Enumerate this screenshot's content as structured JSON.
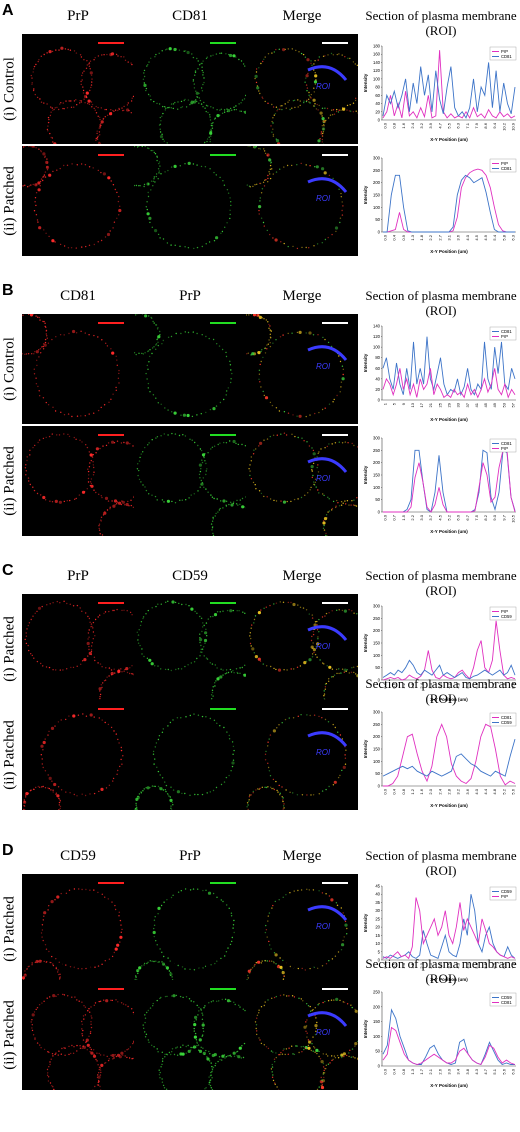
{
  "figure": {
    "section_title_line1": "Section of plasma membrane",
    "section_title_line2": "(ROI)",
    "roi_label": "ROI",
    "merge_label": "Merge",
    "y_axis_label": "Intensity",
    "x_axis_label": "X-Y Position (um)",
    "panels": [
      {
        "letter": "A",
        "channels": [
          "PrP",
          "CD81"
        ],
        "rows": [
          {
            "label": "(i) Control",
            "legend": [
              "PrP",
              "CD81"
            ],
            "ymax": 180,
            "yticks": [
              0,
              20,
              40,
              60,
              80,
              100,
              120,
              140,
              160,
              180
            ],
            "xticks": [
              "0.0",
              "0.8",
              "1.6",
              "2.4",
              "3.2",
              "3.9",
              "4.7",
              "5.5",
              "6.3",
              "7.1",
              "7.9",
              "8.6",
              "9.4",
              "10.2",
              "10.9"
            ]
          },
          {
            "label": "(ii) Patched",
            "legend": [
              "PrP",
              "CD81"
            ],
            "ymax": 300,
            "yticks": [
              0,
              50,
              100,
              150,
              200,
              250,
              300
            ],
            "xticks": [
              "0.0",
              "0.4",
              "0.9",
              "1.3",
              "1.8",
              "2.2",
              "2.7",
              "3.1",
              "3.6",
              "4.0",
              "4.5",
              "4.9",
              "5.4",
              "5.8",
              "6.3"
            ]
          }
        ]
      },
      {
        "letter": "B",
        "channels": [
          "CD81",
          "PrP"
        ],
        "rows": [
          {
            "label": "(i) Control",
            "legend": [
              "CD81",
              "PrP"
            ],
            "ymax": 140,
            "yticks": [
              0,
              20,
              40,
              60,
              80,
              100,
              120,
              140
            ],
            "xticks": [
              "1",
              "5",
              "9",
              "13",
              "17",
              "21",
              "25",
              "29",
              "33",
              "37",
              "41",
              "45",
              "49",
              "53",
              "57"
            ]
          },
          {
            "label": "(ii) Patched",
            "legend": [
              "CD81",
              "PrP"
            ],
            "ymax": 300,
            "yticks": [
              0,
              50,
              100,
              150,
              200,
              250,
              300
            ],
            "xticks": [
              "0.0",
              "0.7",
              "1.5",
              "2.2",
              "3.0",
              "3.7",
              "4.5",
              "5.2",
              "6.0",
              "6.7",
              "7.5",
              "8.2",
              "9.0",
              "9.7",
              "10.5"
            ]
          }
        ]
      },
      {
        "letter": "C",
        "channels": [
          "PrP",
          "CD59"
        ],
        "rows": [
          {
            "label": "(i) Patched",
            "channels": [
              "PrP",
              "CD59"
            ],
            "legend": [
              "PrP",
              "CD59"
            ],
            "ymax": 300,
            "yticks": [
              0,
              50,
              100,
              150,
              200,
              250,
              300
            ],
            "xticks": [
              "0.0",
              "0.6",
              "1.2",
              "1.8",
              "2.4",
              "3.0",
              "3.6",
              "4.2",
              "4.8",
              "5.4",
              "6.0",
              "6.6",
              "7.2",
              "7.8",
              "8.4"
            ]
          },
          {
            "label": "(ii) Patched",
            "channels": [
              "CD81",
              "CD59"
            ],
            "legend": [
              "CD81",
              "CD59"
            ],
            "ymax": 300,
            "yticks": [
              0,
              50,
              100,
              150,
              200,
              250,
              300
            ],
            "xticks": [
              "0.0",
              "0.4",
              "0.8",
              "1.2",
              "1.6",
              "2.0",
              "2.4",
              "2.8",
              "3.2",
              "3.6",
              "4.0",
              "4.4",
              "4.8",
              "5.2",
              "5.6"
            ]
          }
        ]
      },
      {
        "letter": "D",
        "channels": [
          "CD59",
          "PrP"
        ],
        "rows": [
          {
            "label": "(i) Patched",
            "channels": [
              "CD59",
              "PrP"
            ],
            "legend": [
              "CD59",
              "PrP"
            ],
            "ymax": 45,
            "yticks": [
              0,
              5,
              10,
              15,
              20,
              25,
              30,
              35,
              40,
              45
            ],
            "xticks": [
              "0.0",
              "0.5",
              "1.0",
              "1.5",
              "2.0",
              "2.5",
              "3.0",
              "3.5",
              "4.0",
              "4.5",
              "5.0",
              "5.5",
              "6.0",
              "6.5",
              "7.0"
            ]
          },
          {
            "label": "(ii) Patched",
            "channels": [
              "CD59",
              "CD81"
            ],
            "legend": [
              "CD59",
              "CD81"
            ],
            "ymax": 250,
            "yticks": [
              0,
              50,
              100,
              150,
              200,
              250
            ],
            "xticks": [
              "0.0",
              "0.4",
              "0.8",
              "1.3",
              "1.7",
              "2.1",
              "2.6",
              "3.0",
              "3.4",
              "3.8",
              "4.3",
              "4.7",
              "5.1",
              "5.6",
              "6.0"
            ]
          }
        ]
      }
    ]
  },
  "colors": {
    "magenta": "#e030c0",
    "blue": "#3d74c8",
    "scale_red": "#ff2020",
    "scale_green": "#22dd22",
    "scale_white": "#ffffff",
    "roi": "#3b3bff"
  },
  "chart_data": [
    {
      "type": "line",
      "panel": "A(i)",
      "ylabel": "Intensity",
      "xlabel": "X-Y Position (um)",
      "ylim": [
        0,
        180
      ],
      "series": [
        {
          "name": "PrP",
          "values": [
            5,
            20,
            60,
            10,
            40,
            5,
            70,
            10,
            20,
            5,
            30,
            8,
            60,
            5,
            10,
            170,
            20,
            5,
            15,
            5,
            10,
            5,
            20,
            5,
            30,
            8,
            15,
            5,
            25,
            10,
            5,
            20,
            8,
            15,
            5,
            10
          ]
        },
        {
          "name": "CD81",
          "values": [
            10,
            60,
            40,
            70,
            30,
            60,
            100,
            20,
            90,
            40,
            130,
            60,
            110,
            20,
            120,
            50,
            15,
            80,
            130,
            30,
            10,
            20,
            5,
            30,
            100,
            20,
            80,
            60,
            140,
            30,
            120,
            20,
            90,
            40,
            15,
            80
          ]
        }
      ]
    },
    {
      "type": "line",
      "panel": "A(ii)",
      "ylabel": "Intensity",
      "xlabel": "X-Y Position (um)",
      "ylim": [
        0,
        300
      ],
      "series": [
        {
          "name": "PrP",
          "values": [
            0,
            0,
            5,
            10,
            80,
            10,
            0,
            0,
            0,
            0,
            0,
            0,
            0,
            0,
            0,
            0,
            0,
            5,
            60,
            180,
            220,
            240,
            250,
            255,
            250,
            230,
            180,
            100,
            30,
            5,
            0,
            0,
            0
          ]
        },
        {
          "name": "CD81",
          "values": [
            0,
            0,
            150,
            230,
            230,
            100,
            5,
            0,
            0,
            0,
            0,
            0,
            0,
            0,
            0,
            0,
            0,
            20,
            150,
            210,
            230,
            220,
            200,
            210,
            220,
            160,
            80,
            10,
            0,
            0,
            0,
            0,
            0
          ]
        }
      ]
    },
    {
      "type": "line",
      "panel": "B(i)",
      "ylabel": "Intensity",
      "xlabel": "X-Y Position (um)",
      "ylim": [
        0,
        140
      ],
      "series": [
        {
          "name": "CD81",
          "values": [
            60,
            80,
            40,
            20,
            70,
            30,
            10,
            60,
            20,
            110,
            30,
            60,
            30,
            120,
            40,
            20,
            50,
            80,
            30,
            10,
            20,
            15,
            40,
            10,
            25,
            60,
            20,
            10,
            30,
            20,
            110,
            40,
            20,
            100,
            50,
            110,
            30,
            20,
            60,
            40
          ]
        },
        {
          "name": "PrP",
          "values": [
            20,
            40,
            30,
            10,
            30,
            60,
            20,
            40,
            10,
            30,
            5,
            40,
            20,
            30,
            60,
            10,
            30,
            20,
            5,
            10,
            5,
            20,
            10,
            15,
            5,
            30,
            10,
            20,
            5,
            20,
            40,
            15,
            30,
            60,
            20,
            10,
            30,
            5,
            20,
            10
          ]
        }
      ]
    },
    {
      "type": "line",
      "panel": "B(ii)",
      "ylabel": "Intensity",
      "xlabel": "X-Y Position (um)",
      "ylim": [
        0,
        300
      ],
      "series": [
        {
          "name": "CD81",
          "values": [
            0,
            0,
            0,
            0,
            0,
            0,
            10,
            50,
            250,
            250,
            120,
            10,
            0,
            80,
            230,
            80,
            0,
            0,
            0,
            0,
            0,
            0,
            0,
            10,
            80,
            250,
            240,
            60,
            10,
            80,
            250,
            240,
            60,
            5
          ]
        },
        {
          "name": "PrP",
          "values": [
            0,
            0,
            0,
            0,
            0,
            0,
            0,
            20,
            140,
            200,
            120,
            20,
            0,
            30,
            100,
            30,
            0,
            0,
            0,
            0,
            0,
            0,
            0,
            5,
            100,
            200,
            150,
            40,
            60,
            180,
            250,
            250,
            60,
            0
          ]
        }
      ]
    },
    {
      "type": "line",
      "panel": "C(i)",
      "ylabel": "Intensity",
      "xlabel": "X-Y Position (um)",
      "ylim": [
        0,
        300
      ],
      "series": [
        {
          "name": "PrP",
          "values": [
            0,
            5,
            10,
            5,
            10,
            0,
            5,
            20,
            10,
            5,
            15,
            40,
            120,
            40,
            10,
            5,
            20,
            10,
            5,
            10,
            30,
            40,
            20,
            5,
            50,
            120,
            160,
            50,
            30,
            80,
            240,
            120,
            20,
            5,
            10,
            5
          ]
        },
        {
          "name": "CD59",
          "values": [
            10,
            20,
            30,
            20,
            40,
            30,
            50,
            80,
            60,
            30,
            20,
            40,
            30,
            20,
            40,
            60,
            20,
            30,
            20,
            10,
            20,
            30,
            10,
            5,
            15,
            20,
            30,
            40,
            30,
            20,
            30,
            40,
            20,
            30,
            60,
            20
          ]
        }
      ]
    },
    {
      "type": "line",
      "panel": "C(ii)",
      "ylabel": "Intensity",
      "xlabel": "X-Y Position (um)",
      "ylim": [
        0,
        300
      ],
      "series": [
        {
          "name": "CD81",
          "values": [
            0,
            0,
            10,
            40,
            120,
            200,
            210,
            130,
            60,
            20,
            80,
            200,
            250,
            200,
            90,
            40,
            20,
            10,
            30,
            100,
            200,
            250,
            240,
            150,
            40,
            5,
            20,
            10
          ]
        },
        {
          "name": "CD59",
          "values": [
            40,
            50,
            60,
            70,
            80,
            70,
            80,
            60,
            50,
            40,
            60,
            50,
            40,
            50,
            60,
            120,
            130,
            110,
            90,
            80,
            60,
            50,
            40,
            60,
            50,
            40,
            120,
            190
          ]
        }
      ]
    },
    {
      "type": "line",
      "panel": "D(i)",
      "ylabel": "Intensity",
      "xlabel": "X-Y Position (um)",
      "ylim": [
        0,
        45
      ],
      "series": [
        {
          "name": "CD59",
          "values": [
            2,
            1,
            3,
            2,
            1,
            2,
            3,
            5,
            2,
            1,
            3,
            18,
            10,
            3,
            2,
            1,
            8,
            15,
            5,
            3,
            2,
            10,
            25,
            15,
            40,
            30,
            10,
            5,
            15,
            20,
            10,
            5,
            3,
            2,
            8,
            3,
            1
          ]
        },
        {
          "name": "PrP",
          "values": [
            1,
            2,
            1,
            3,
            5,
            2,
            3,
            1,
            8,
            38,
            30,
            10,
            15,
            20,
            25,
            15,
            20,
            30,
            15,
            10,
            20,
            35,
            18,
            25,
            20,
            15,
            10,
            25,
            18,
            10,
            8,
            5,
            3,
            2,
            1,
            2,
            1
          ]
        }
      ]
    },
    {
      "type": "line",
      "panel": "D(ii)",
      "ylabel": "Intensity",
      "xlabel": "X-Y Position (um)",
      "ylim": [
        0,
        250
      ],
      "series": [
        {
          "name": "CD59",
          "values": [
            40,
            70,
            190,
            160,
            100,
            60,
            20,
            10,
            5,
            5,
            30,
            60,
            70,
            40,
            20,
            10,
            5,
            10,
            80,
            90,
            40,
            20,
            10,
            5,
            40,
            80,
            50,
            20,
            5,
            10,
            5,
            5
          ]
        },
        {
          "name": "CD81",
          "values": [
            20,
            40,
            130,
            120,
            80,
            40,
            20,
            10,
            5,
            10,
            20,
            30,
            40,
            30,
            20,
            10,
            10,
            20,
            50,
            60,
            40,
            20,
            10,
            5,
            30,
            70,
            60,
            30,
            10,
            20,
            10,
            5
          ]
        }
      ]
    }
  ]
}
